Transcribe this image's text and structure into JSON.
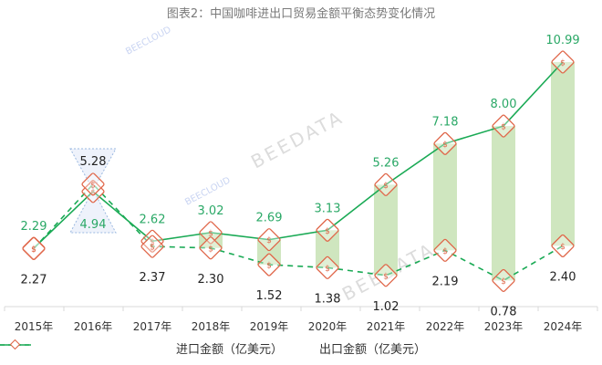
{
  "title": "图表2：中国咖啡进出口贸易金额平衡态势变化情况",
  "watermarks": [
    "BEECLOUD",
    "BEEDATA"
  ],
  "legend": {
    "import_label": "进口金额（亿美元）",
    "export_label": "出口金额（亿美元）"
  },
  "colors": {
    "import": "#1aaa55",
    "export": "#1aaa55",
    "band": "#cfe6bf",
    "marker": "#e0674a",
    "import_label": "#2aa866",
    "export_label": "#222222"
  },
  "chart_data": {
    "type": "line",
    "title": "图表2：中国咖啡进出口贸易金额平衡态势变化情况",
    "xlabel": "",
    "ylabel": "",
    "categories": [
      "2015年",
      "2016年",
      "2017年",
      "2018年",
      "2019年",
      "2020年",
      "2021年",
      "2022年",
      "2023年",
      "2024年"
    ],
    "series": [
      {
        "name": "进口金额（亿美元）",
        "style": "solid",
        "values": [
          2.29,
          4.94,
          2.62,
          3.02,
          2.69,
          3.13,
          5.26,
          7.18,
          8.0,
          10.99
        ]
      },
      {
        "name": "出口金额（亿美元）",
        "style": "dashed",
        "values": [
          2.27,
          5.28,
          2.37,
          2.3,
          1.52,
          1.38,
          1.02,
          2.19,
          0.78,
          2.4
        ]
      }
    ],
    "bands": "shaded bars between import and export values from 2018年 to 2024年",
    "grid": false,
    "legend_position": "bottom"
  }
}
